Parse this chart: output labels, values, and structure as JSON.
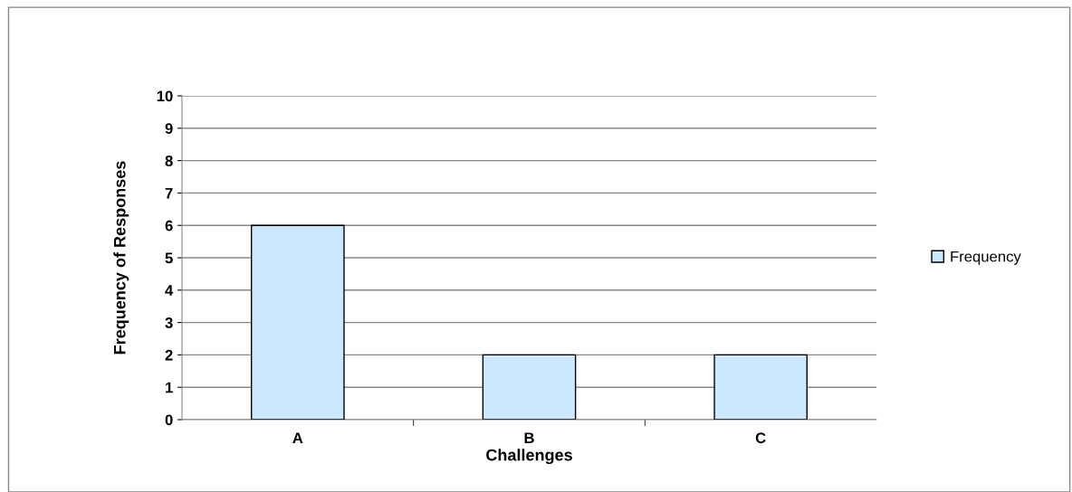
{
  "chart_data": {
    "type": "bar",
    "xlabel": "Challenges",
    "ylabel": "Frequency of Responses",
    "categories": [
      "A",
      "B",
      "C"
    ],
    "series": [
      {
        "name": "Frequency",
        "color": "#cce8ff",
        "values": [
          6,
          2,
          2
        ]
      }
    ],
    "ylim": [
      0,
      10
    ],
    "yticks": [
      0,
      1,
      2,
      3,
      4,
      5,
      6,
      7,
      8,
      9,
      10
    ],
    "grid": "y",
    "legend": "right"
  }
}
